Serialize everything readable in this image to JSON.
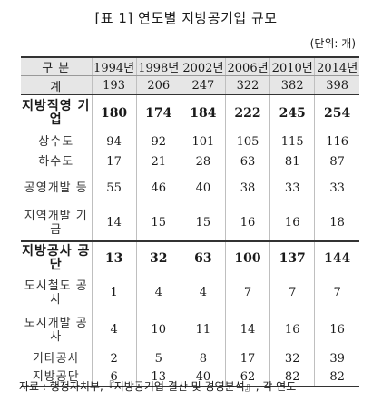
{
  "title": "[표 1] 연도별 지방공기업 규모",
  "unit": "(단위: 개)",
  "header": {
    "category": "구 분",
    "years": [
      "1994년",
      "1998년",
      "2002년",
      "2006년",
      "2010년",
      "2014년"
    ]
  },
  "total": {
    "label": "계",
    "values": [
      "193",
      "206",
      "247",
      "322",
      "382",
      "398"
    ]
  },
  "rows": [
    {
      "label": "지방직영 기업",
      "values": [
        "180",
        "174",
        "184",
        "222",
        "245",
        "254"
      ]
    },
    {
      "label": "상수도",
      "values": [
        "94",
        "92",
        "101",
        "105",
        "115",
        "116"
      ]
    },
    {
      "label": "하수도",
      "values": [
        "17",
        "21",
        "28",
        "63",
        "81",
        "87"
      ]
    },
    {
      "label": "공영개발 등",
      "values": [
        "55",
        "46",
        "40",
        "38",
        "33",
        "33"
      ]
    },
    {
      "label": "지역개발 기금",
      "values": [
        "14",
        "15",
        "15",
        "16",
        "16",
        "18"
      ]
    },
    {
      "label": "지방공사 공단",
      "values": [
        "13",
        "32",
        "63",
        "100",
        "137",
        "144"
      ]
    },
    {
      "label": "도시철도 공사",
      "values": [
        "1",
        "4",
        "4",
        "7",
        "7",
        "7"
      ]
    },
    {
      "label": "도시개발 공사",
      "values": [
        "4",
        "10",
        "11",
        "14",
        "16",
        "16"
      ]
    },
    {
      "label": "기타공사",
      "values": [
        "2",
        "5",
        "8",
        "17",
        "32",
        "39"
      ]
    },
    {
      "label": "지방공단",
      "values": [
        "6",
        "13",
        "40",
        "62",
        "82",
        "82"
      ]
    }
  ],
  "source": "자료 : 행정자치부,『지방공기업 결산 및 경영분석』, 각 연도"
}
